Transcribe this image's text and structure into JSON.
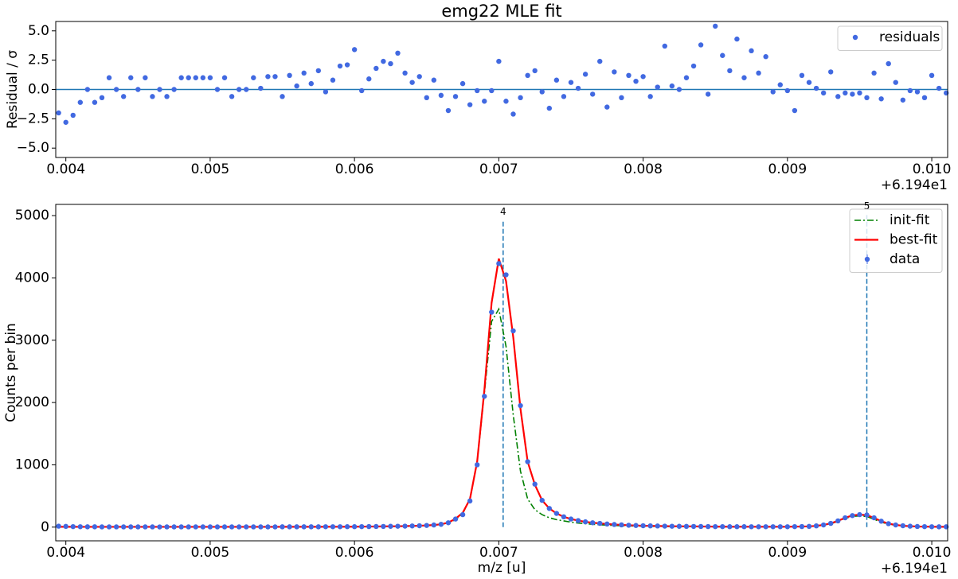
{
  "chart_data": [
    {
      "type": "scatter",
      "title": "emg22 MLE fit",
      "ylabel": "Residual / σ",
      "x_offset_text": "+6.194e1",
      "x": [
        0.00395,
        0.004,
        0.00405,
        0.0041,
        0.00415,
        0.0042,
        0.00425,
        0.0043,
        0.00435,
        0.0044,
        0.00445,
        0.0045,
        0.00455,
        0.0046,
        0.00465,
        0.0047,
        0.00475,
        0.0048,
        0.00485,
        0.0049,
        0.00495,
        0.005,
        0.00505,
        0.0051,
        0.00515,
        0.0052,
        0.00525,
        0.0053,
        0.00535,
        0.0054,
        0.00545,
        0.0055,
        0.00555,
        0.0056,
        0.00565,
        0.0057,
        0.00575,
        0.0058,
        0.00585,
        0.0059,
        0.00595,
        0.006,
        0.00605,
        0.0061,
        0.00615,
        0.0062,
        0.00625,
        0.0063,
        0.00635,
        0.0064,
        0.00645,
        0.0065,
        0.00655,
        0.0066,
        0.00665,
        0.0067,
        0.00675,
        0.0068,
        0.00685,
        0.0069,
        0.00695,
        0.007,
        0.00705,
        0.0071,
        0.00715,
        0.0072,
        0.00725,
        0.0073,
        0.00735,
        0.0074,
        0.00745,
        0.0075,
        0.00755,
        0.0076,
        0.00765,
        0.0077,
        0.00775,
        0.0078,
        0.00785,
        0.0079,
        0.00795,
        0.008,
        0.00805,
        0.0081,
        0.00815,
        0.0082,
        0.00825,
        0.0083,
        0.00835,
        0.0084,
        0.00845,
        0.0085,
        0.00855,
        0.0086,
        0.00865,
        0.0087,
        0.00875,
        0.0088,
        0.00885,
        0.0089,
        0.00895,
        0.009,
        0.00905,
        0.0091,
        0.00915,
        0.0092,
        0.00925,
        0.0093,
        0.00935,
        0.0094,
        0.00945,
        0.0095,
        0.00955,
        0.0096,
        0.00965,
        0.0097,
        0.00975,
        0.0098,
        0.00985,
        0.0099,
        0.00995,
        0.01,
        0.01005,
        0.0101
      ],
      "series": [
        {
          "name": "residuals",
          "color": "#4169e1",
          "values": [
            -2,
            -2.8,
            -2.2,
            -1.1,
            0,
            -1.1,
            -0.7,
            1,
            0,
            -0.6,
            1,
            0,
            1,
            -0.6,
            0,
            -0.6,
            0,
            1,
            1,
            1,
            1,
            1,
            0,
            1,
            -0.6,
            0,
            0,
            1,
            0.1,
            1.1,
            1.1,
            -0.6,
            1.2,
            0.3,
            1.4,
            0.5,
            1.6,
            -0.2,
            0.8,
            2,
            2.1,
            3.4,
            -0.1,
            0.9,
            1.8,
            2.4,
            2.2,
            3.1,
            1.4,
            0.6,
            1.1,
            -0.7,
            0.8,
            -0.5,
            -1.8,
            -0.6,
            0.5,
            -1.3,
            -0.1,
            -1,
            -0.1,
            2.4,
            -1,
            -2.1,
            -0.7,
            1.2,
            1.6,
            -0.2,
            -1.6,
            0.8,
            -0.6,
            0.6,
            0.1,
            1.3,
            -0.4,
            2.4,
            -1.5,
            1.5,
            -0.7,
            1.2,
            0.7,
            1.1,
            -0.6,
            0.2,
            3.7,
            0.3,
            0,
            1,
            2,
            3.8,
            -0.4,
            5.4,
            2.9,
            1.6,
            4.3,
            1,
            3.3,
            1.4,
            2.8,
            -0.2,
            0.4,
            -0.1,
            -1.8,
            1.2,
            0.6,
            0.1,
            -0.3,
            1.5,
            -0.6,
            -0.3,
            -0.4,
            -0.3,
            -0.7,
            1.4,
            -0.8,
            2.2,
            0.6,
            -0.9,
            -0.1,
            -0.2,
            -0.7,
            1.2,
            0.1,
            -0.3
          ]
        }
      ],
      "hline": 0,
      "hline_color": "#1f77b4",
      "xlim": [
        0.00393,
        0.01011
      ],
      "ylim": [
        -5.8,
        5.8
      ],
      "xticks": [
        0.004,
        0.005,
        0.006,
        0.007,
        0.008,
        0.009,
        {
          "value": 0.01,
          "label": "0.010"
        }
      ],
      "yticks": [
        {
          "value": 5,
          "label": "5.0"
        },
        {
          "value": 2.5,
          "label": "2.5"
        },
        {
          "value": 0,
          "label": "0.0"
        },
        {
          "value": -2.5,
          "label": "−2.5"
        },
        {
          "value": -5,
          "label": "−5.0"
        }
      ],
      "legend": "upper right"
    },
    {
      "type": "line",
      "xlabel": "m/z [u]",
      "ylabel": "Counts per bin",
      "x_offset_text": "+6.194e1",
      "x": [
        0.00395,
        0.004,
        0.00405,
        0.0041,
        0.00415,
        0.0042,
        0.00425,
        0.0043,
        0.00435,
        0.0044,
        0.00445,
        0.0045,
        0.00455,
        0.0046,
        0.00465,
        0.0047,
        0.00475,
        0.0048,
        0.00485,
        0.0049,
        0.00495,
        0.005,
        0.00505,
        0.0051,
        0.00515,
        0.0052,
        0.00525,
        0.0053,
        0.00535,
        0.0054,
        0.00545,
        0.0055,
        0.00555,
        0.0056,
        0.00565,
        0.0057,
        0.00575,
        0.0058,
        0.00585,
        0.0059,
        0.00595,
        0.006,
        0.00605,
        0.0061,
        0.00615,
        0.0062,
        0.00625,
        0.0063,
        0.00635,
        0.0064,
        0.00645,
        0.0065,
        0.00655,
        0.0066,
        0.00665,
        0.0067,
        0.00675,
        0.0068,
        0.00685,
        0.0069,
        0.00695,
        0.007,
        0.00705,
        0.0071,
        0.00715,
        0.0072,
        0.00725,
        0.0073,
        0.00735,
        0.0074,
        0.00745,
        0.0075,
        0.00755,
        0.0076,
        0.00765,
        0.0077,
        0.00775,
        0.0078,
        0.00785,
        0.0079,
        0.00795,
        0.008,
        0.00805,
        0.0081,
        0.00815,
        0.0082,
        0.00825,
        0.0083,
        0.00835,
        0.0084,
        0.00845,
        0.0085,
        0.00855,
        0.0086,
        0.00865,
        0.0087,
        0.00875,
        0.0088,
        0.00885,
        0.0089,
        0.00895,
        0.009,
        0.00905,
        0.0091,
        0.00915,
        0.0092,
        0.00925,
        0.0093,
        0.00935,
        0.0094,
        0.00945,
        0.0095,
        0.00955,
        0.0096,
        0.00965,
        0.0097,
        0.00975,
        0.0098,
        0.00985,
        0.0099,
        0.00995,
        0.01,
        0.01005,
        0.0101
      ],
      "series": [
        {
          "name": "init-fit",
          "color": "green",
          "linestyle": "-.",
          "values": [
            4,
            4,
            4,
            4,
            4,
            4,
            4,
            4,
            4,
            4,
            4,
            4,
            4,
            4,
            4,
            4,
            4,
            4,
            4,
            4,
            4,
            4,
            4,
            4,
            4,
            4,
            4,
            4,
            4,
            4,
            4,
            4,
            4,
            4,
            4,
            4,
            5,
            5,
            5,
            5,
            6,
            6,
            7,
            8,
            9,
            10,
            11,
            13,
            15,
            18,
            21,
            26,
            33,
            44,
            68,
            120,
            220,
            450,
            1050,
            2150,
            3300,
            3500,
            2900,
            1800,
            900,
            450,
            280,
            200,
            150,
            120,
            100,
            80,
            65,
            55,
            45,
            38,
            32,
            27,
            23,
            20,
            17,
            15,
            13,
            12,
            11,
            10,
            9,
            8,
            8,
            7,
            7,
            6,
            6,
            6,
            6,
            5,
            5,
            5,
            5,
            5,
            5,
            5,
            7,
            8,
            11,
            18,
            32,
            55,
            92,
            140,
            172,
            180,
            170,
            125,
            80,
            48,
            30,
            19,
            13,
            9,
            7,
            6,
            5,
            5
          ]
        },
        {
          "name": "best-fit",
          "color": "red",
          "linestyle": "-",
          "values": [
            5,
            5,
            5,
            4,
            4,
            4,
            4,
            4,
            4,
            4,
            4,
            4,
            4,
            4,
            4,
            4,
            4,
            4,
            4,
            4,
            4,
            4,
            4,
            4,
            4,
            4,
            4,
            4,
            4,
            4,
            4,
            5,
            5,
            5,
            5,
            5,
            5,
            6,
            6,
            6,
            7,
            7,
            8,
            9,
            10,
            11,
            13,
            14,
            16,
            19,
            22,
            27,
            34,
            46,
            72,
            135,
            230,
            450,
            1050,
            2200,
            3600,
            4310,
            3950,
            3050,
            1900,
            1050,
            680,
            430,
            300,
            220,
            165,
            130,
            105,
            85,
            70,
            60,
            50,
            42,
            36,
            30,
            26,
            22,
            20,
            18,
            16,
            14,
            13,
            12,
            11,
            10,
            9,
            8,
            8,
            7,
            7,
            7,
            6,
            6,
            6,
            6,
            6,
            6,
            8,
            9,
            12,
            20,
            35,
            60,
            100,
            150,
            188,
            200,
            192,
            148,
            95,
            55,
            35,
            22,
            15,
            10,
            8,
            6,
            5,
            5
          ]
        },
        {
          "name": "data",
          "color": "#4169e1",
          "linestyle": "none",
          "values": [
            15,
            12,
            8,
            6,
            5,
            5,
            4,
            4,
            4,
            4,
            4,
            4,
            4,
            4,
            3,
            4,
            4,
            4,
            4,
            4,
            4,
            4,
            4,
            4,
            4,
            4,
            4,
            4,
            4,
            4,
            4,
            5,
            5,
            5,
            5,
            5,
            5,
            6,
            6,
            6,
            7,
            7,
            8,
            9,
            10,
            11,
            13,
            14,
            16,
            19,
            22,
            27,
            34,
            45,
            70,
            130,
            200,
            420,
            1000,
            2100,
            3450,
            4230,
            4050,
            3150,
            1950,
            1050,
            690,
            430,
            300,
            220,
            165,
            130,
            105,
            85,
            70,
            60,
            50,
            42,
            36,
            30,
            26,
            22,
            20,
            18,
            16,
            14,
            13,
            12,
            11,
            10,
            9,
            8,
            8,
            7,
            7,
            7,
            6,
            6,
            6,
            6,
            6,
            6,
            8,
            9,
            12,
            20,
            35,
            60,
            100,
            150,
            185,
            200,
            195,
            150,
            95,
            55,
            35,
            22,
            15,
            10,
            8,
            6,
            5,
            5
          ]
        }
      ],
      "peak_markers": [
        {
          "label": "4",
          "x": 0.00703,
          "top": 4920
        },
        {
          "label": "5",
          "x": 0.00955,
          "top": 5010
        }
      ],
      "peak_marker_color": "#1f77b4",
      "xlim": [
        0.00393,
        0.01011
      ],
      "ylim": [
        -220,
        5180
      ],
      "xticks": [
        0.004,
        0.005,
        0.006,
        0.007,
        0.008,
        0.009,
        {
          "value": 0.01,
          "label": "0.010"
        }
      ],
      "yticks": [
        0,
        1000,
        2000,
        3000,
        4000,
        5000
      ],
      "legend": "upper right"
    }
  ]
}
